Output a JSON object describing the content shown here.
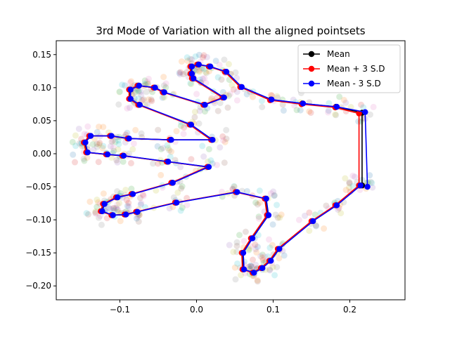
{
  "chart_data": {
    "type": "line",
    "title": "3rd Mode of Variation with all the aligned pointsets",
    "xlabel": "",
    "ylabel": "",
    "xlim": [
      -0.183,
      0.272
    ],
    "ylim": [
      -0.221,
      0.171
    ],
    "xticks": [
      -0.1,
      0.0,
      0.1,
      0.2
    ],
    "xtick_labels": [
      "−0.1",
      "0.0",
      "0.1",
      "0.2"
    ],
    "yticks": [
      -0.2,
      -0.15,
      -0.1,
      -0.05,
      0.0,
      0.05,
      0.1,
      0.15
    ],
    "ytick_labels": [
      "−0.20",
      "−0.15",
      "−0.10",
      "−0.05",
      "0.00",
      "0.05",
      "0.10",
      "0.15"
    ],
    "legend_position": "top-right",
    "series": [
      {
        "name": "Mean",
        "color": "#000000",
        "points": [
          [
            0.213,
            -0.048
          ],
          [
            0.182,
            -0.078
          ],
          [
            0.151,
            -0.102
          ],
          [
            0.107,
            -0.144
          ],
          [
            0.096,
            -0.162
          ],
          [
            0.085,
            -0.173
          ],
          [
            0.074,
            -0.18
          ],
          [
            0.061,
            -0.175
          ],
          [
            0.06,
            -0.15
          ],
          [
            0.072,
            -0.128
          ],
          [
            0.093,
            -0.093
          ],
          [
            0.09,
            -0.068
          ],
          [
            0.052,
            -0.058
          ],
          [
            -0.027,
            -0.074
          ],
          [
            -0.078,
            -0.088
          ],
          [
            -0.093,
            -0.092
          ],
          [
            -0.11,
            -0.093
          ],
          [
            -0.124,
            -0.087
          ],
          [
            -0.121,
            -0.076
          ],
          [
            -0.104,
            -0.066
          ],
          [
            -0.084,
            -0.061
          ],
          [
            -0.032,
            -0.044
          ],
          [
            0.015,
            -0.02
          ],
          [
            -0.038,
            -0.012
          ],
          [
            -0.096,
            -0.003
          ],
          [
            -0.117,
            -0.001
          ],
          [
            -0.143,
            0.002
          ],
          [
            -0.146,
            0.017
          ],
          [
            -0.139,
            0.027
          ],
          [
            -0.112,
            0.027
          ],
          [
            -0.089,
            0.023
          ],
          [
            -0.034,
            0.021
          ],
          [
            0.02,
            0.021
          ],
          [
            -0.008,
            0.044
          ],
          [
            -0.075,
            0.074
          ],
          [
            -0.087,
            0.083
          ],
          [
            -0.087,
            0.097
          ],
          [
            -0.076,
            0.103
          ],
          [
            -0.055,
            0.1
          ],
          [
            -0.043,
            0.093
          ],
          [
            0.01,
            0.074
          ],
          [
            0.035,
            0.085
          ],
          [
            -0.005,
            0.114
          ],
          [
            -0.007,
            0.121
          ],
          [
            -0.007,
            0.132
          ],
          [
            0.002,
            0.135
          ],
          [
            0.017,
            0.132
          ],
          [
            0.038,
            0.124
          ],
          [
            0.058,
            0.101
          ],
          [
            0.097,
            0.082
          ],
          [
            0.138,
            0.076
          ],
          [
            0.182,
            0.071
          ],
          [
            0.216,
            0.062
          ],
          [
            0.216,
            -0.048
          ]
        ]
      },
      {
        "name": "Mean + 3 S.D",
        "color": "#ff0000",
        "points": [
          [
            0.212,
            -0.048
          ],
          [
            0.181,
            -0.078
          ],
          [
            0.15,
            -0.102
          ],
          [
            0.106,
            -0.144
          ],
          [
            0.095,
            -0.162
          ],
          [
            0.084,
            -0.173
          ],
          [
            0.073,
            -0.18
          ],
          [
            0.06,
            -0.175
          ],
          [
            0.059,
            -0.15
          ],
          [
            0.071,
            -0.128
          ],
          [
            0.092,
            -0.093
          ],
          [
            0.089,
            -0.068
          ],
          [
            0.051,
            -0.058
          ],
          [
            -0.028,
            -0.074
          ],
          [
            -0.079,
            -0.088
          ],
          [
            -0.094,
            -0.092
          ],
          [
            -0.111,
            -0.093
          ],
          [
            -0.125,
            -0.087
          ],
          [
            -0.122,
            -0.076
          ],
          [
            -0.105,
            -0.066
          ],
          [
            -0.085,
            -0.061
          ],
          [
            -0.033,
            -0.044
          ],
          [
            0.014,
            -0.02
          ],
          [
            -0.039,
            -0.012
          ],
          [
            -0.097,
            -0.003
          ],
          [
            -0.118,
            -0.001
          ],
          [
            -0.144,
            0.002
          ],
          [
            -0.147,
            0.017
          ],
          [
            -0.14,
            0.027
          ],
          [
            -0.113,
            0.027
          ],
          [
            -0.09,
            0.023
          ],
          [
            -0.035,
            0.021
          ],
          [
            0.019,
            0.021
          ],
          [
            -0.009,
            0.044
          ],
          [
            -0.076,
            0.074
          ],
          [
            -0.088,
            0.083
          ],
          [
            -0.088,
            0.097
          ],
          [
            -0.077,
            0.103
          ],
          [
            -0.056,
            0.1
          ],
          [
            -0.044,
            0.093
          ],
          [
            0.009,
            0.074
          ],
          [
            0.034,
            0.085
          ],
          [
            -0.006,
            0.114
          ],
          [
            -0.008,
            0.121
          ],
          [
            -0.008,
            0.132
          ],
          [
            0.001,
            0.135
          ],
          [
            0.016,
            0.132
          ],
          [
            0.037,
            0.124
          ],
          [
            0.057,
            0.101
          ],
          [
            0.096,
            0.081
          ],
          [
            0.137,
            0.075
          ],
          [
            0.181,
            0.07
          ],
          [
            0.212,
            0.061
          ],
          [
            0.212,
            -0.048
          ]
        ]
      },
      {
        "name": "Mean - 3 S.D",
        "color": "#0000ff",
        "points": [
          [
            0.214,
            -0.048
          ],
          [
            0.183,
            -0.078
          ],
          [
            0.152,
            -0.102
          ],
          [
            0.108,
            -0.144
          ],
          [
            0.097,
            -0.162
          ],
          [
            0.086,
            -0.173
          ],
          [
            0.075,
            -0.18
          ],
          [
            0.062,
            -0.175
          ],
          [
            0.061,
            -0.15
          ],
          [
            0.073,
            -0.128
          ],
          [
            0.094,
            -0.093
          ],
          [
            0.091,
            -0.068
          ],
          [
            0.053,
            -0.058
          ],
          [
            -0.026,
            -0.074
          ],
          [
            -0.077,
            -0.088
          ],
          [
            -0.092,
            -0.092
          ],
          [
            -0.109,
            -0.093
          ],
          [
            -0.123,
            -0.087
          ],
          [
            -0.12,
            -0.076
          ],
          [
            -0.103,
            -0.066
          ],
          [
            -0.083,
            -0.061
          ],
          [
            -0.031,
            -0.044
          ],
          [
            0.016,
            -0.02
          ],
          [
            -0.037,
            -0.012
          ],
          [
            -0.095,
            -0.003
          ],
          [
            -0.116,
            -0.001
          ],
          [
            -0.142,
            0.002
          ],
          [
            -0.145,
            0.017
          ],
          [
            -0.138,
            0.027
          ],
          [
            -0.111,
            0.027
          ],
          [
            -0.088,
            0.023
          ],
          [
            -0.033,
            0.021
          ],
          [
            0.021,
            0.021
          ],
          [
            -0.007,
            0.044
          ],
          [
            -0.074,
            0.074
          ],
          [
            -0.086,
            0.083
          ],
          [
            -0.086,
            0.097
          ],
          [
            -0.075,
            0.103
          ],
          [
            -0.054,
            0.1
          ],
          [
            -0.042,
            0.093
          ],
          [
            0.011,
            0.074
          ],
          [
            0.036,
            0.085
          ],
          [
            -0.004,
            0.114
          ],
          [
            -0.006,
            0.121
          ],
          [
            -0.006,
            0.132
          ],
          [
            0.003,
            0.135
          ],
          [
            0.018,
            0.132
          ],
          [
            0.039,
            0.124
          ],
          [
            0.059,
            0.101
          ],
          [
            0.098,
            0.082
          ],
          [
            0.139,
            0.076
          ],
          [
            0.183,
            0.071
          ],
          [
            0.22,
            0.063
          ],
          [
            0.223,
            -0.05
          ]
        ]
      }
    ],
    "aligned_pointsets_colors": [
      "#1f77b4",
      "#ff7f0e",
      "#2ca02c",
      "#d62728",
      "#9467bd",
      "#8c564b",
      "#e377c2",
      "#7f7f7f",
      "#bcbd22",
      "#17becf"
    ]
  }
}
